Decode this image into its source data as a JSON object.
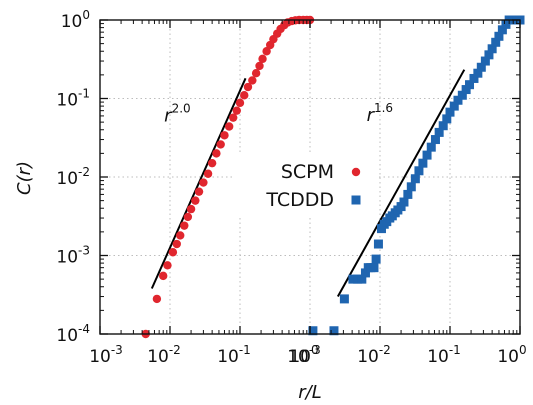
{
  "chart_data": {
    "type": "scatter",
    "ylabel": "C(r)",
    "xlabel": "r/L",
    "yscale": "log",
    "ylim": [
      0.0001,
      1
    ],
    "y_ticks": [
      {
        "base": "10",
        "exp": "-4"
      },
      {
        "base": "10",
        "exp": "-3"
      },
      {
        "base": "10",
        "exp": "-2"
      },
      {
        "base": "10",
        "exp": "-1"
      },
      {
        "base": "10",
        "exp": "0"
      }
    ],
    "grid": true,
    "panels": [
      {
        "xscale": "log",
        "xlim": [
          0.001,
          1
        ],
        "x_ticks": [
          {
            "base": "10",
            "exp": "-3"
          },
          {
            "base": "10",
            "exp": "-2"
          },
          {
            "base": "10",
            "exp": "-1"
          },
          {
            "base": "10",
            "exp": "0"
          }
        ],
        "series_index": 0,
        "guide": {
          "label_base": "r",
          "label_exp": "2.0",
          "slope": 2.0,
          "x": [
            0.0055,
            0.12
          ],
          "y_start": 0.00038
        }
      },
      {
        "xscale": "log",
        "xlim": [
          0.001,
          1
        ],
        "x_ticks": [
          {
            "base": "10",
            "exp": "-3"
          },
          {
            "base": "10",
            "exp": "-2"
          },
          {
            "base": "10",
            "exp": "-1"
          },
          {
            "base": "10",
            "exp": "0"
          }
        ],
        "series_index": 1,
        "guide": {
          "label_base": "r",
          "label_exp": "1.6",
          "slope": 1.6,
          "x": [
            0.0025,
            0.16
          ],
          "y_start": 0.0003
        }
      }
    ],
    "series": [
      {
        "name": "SCPM",
        "marker": "circle",
        "color": "#e0262e",
        "x": [
          0.0045,
          0.0065,
          0.008,
          0.0092,
          0.011,
          0.0125,
          0.014,
          0.016,
          0.018,
          0.02,
          0.023,
          0.026,
          0.03,
          0.035,
          0.04,
          0.046,
          0.053,
          0.06,
          0.07,
          0.08,
          0.09,
          0.1,
          0.115,
          0.13,
          0.15,
          0.17,
          0.19,
          0.21,
          0.24,
          0.27,
          0.3,
          0.34,
          0.38,
          0.43,
          0.48,
          0.55,
          0.62,
          0.7,
          0.8,
          0.9,
          1.0
        ],
        "y": [
          0.0001,
          0.00028,
          0.00055,
          0.00075,
          0.0011,
          0.0014,
          0.0018,
          0.0024,
          0.0031,
          0.0039,
          0.005,
          0.0065,
          0.0085,
          0.011,
          0.015,
          0.02,
          0.026,
          0.034,
          0.044,
          0.057,
          0.07,
          0.088,
          0.11,
          0.14,
          0.17,
          0.21,
          0.26,
          0.32,
          0.4,
          0.48,
          0.57,
          0.67,
          0.77,
          0.86,
          0.93,
          0.97,
          0.99,
          1.0,
          1.0,
          1.0,
          1.0
        ]
      },
      {
        "name": "TCDDD",
        "marker": "square",
        "color": "#1f65b0",
        "x": [
          0.0011,
          0.0022,
          0.0031,
          0.0041,
          0.0048,
          0.0055,
          0.0062,
          0.0068,
          0.0074,
          0.0082,
          0.0088,
          0.0095,
          0.0105,
          0.0115,
          0.0125,
          0.0138,
          0.015,
          0.0165,
          0.018,
          0.02,
          0.022,
          0.025,
          0.028,
          0.032,
          0.036,
          0.041,
          0.047,
          0.054,
          0.062,
          0.07,
          0.08,
          0.09,
          0.1,
          0.115,
          0.13,
          0.15,
          0.17,
          0.19,
          0.22,
          0.25,
          0.28,
          0.32,
          0.36,
          0.4,
          0.45,
          0.5,
          0.56,
          0.63,
          0.7,
          0.8,
          0.9,
          1.0
        ],
        "y": [
          0.00011,
          0.00011,
          0.00028,
          0.0005,
          0.0005,
          0.0005,
          0.0006,
          0.0007,
          0.0007,
          0.0007,
          0.0009,
          0.0014,
          0.0022,
          0.0025,
          0.0027,
          0.003,
          0.0032,
          0.0035,
          0.0038,
          0.0042,
          0.0048,
          0.006,
          0.0075,
          0.0095,
          0.012,
          0.015,
          0.019,
          0.024,
          0.03,
          0.037,
          0.045,
          0.055,
          0.067,
          0.08,
          0.095,
          0.11,
          0.13,
          0.15,
          0.18,
          0.21,
          0.25,
          0.3,
          0.36,
          0.43,
          0.52,
          0.62,
          0.75,
          0.88,
          1.0,
          1.0,
          1.0,
          1.0
        ]
      }
    ]
  }
}
